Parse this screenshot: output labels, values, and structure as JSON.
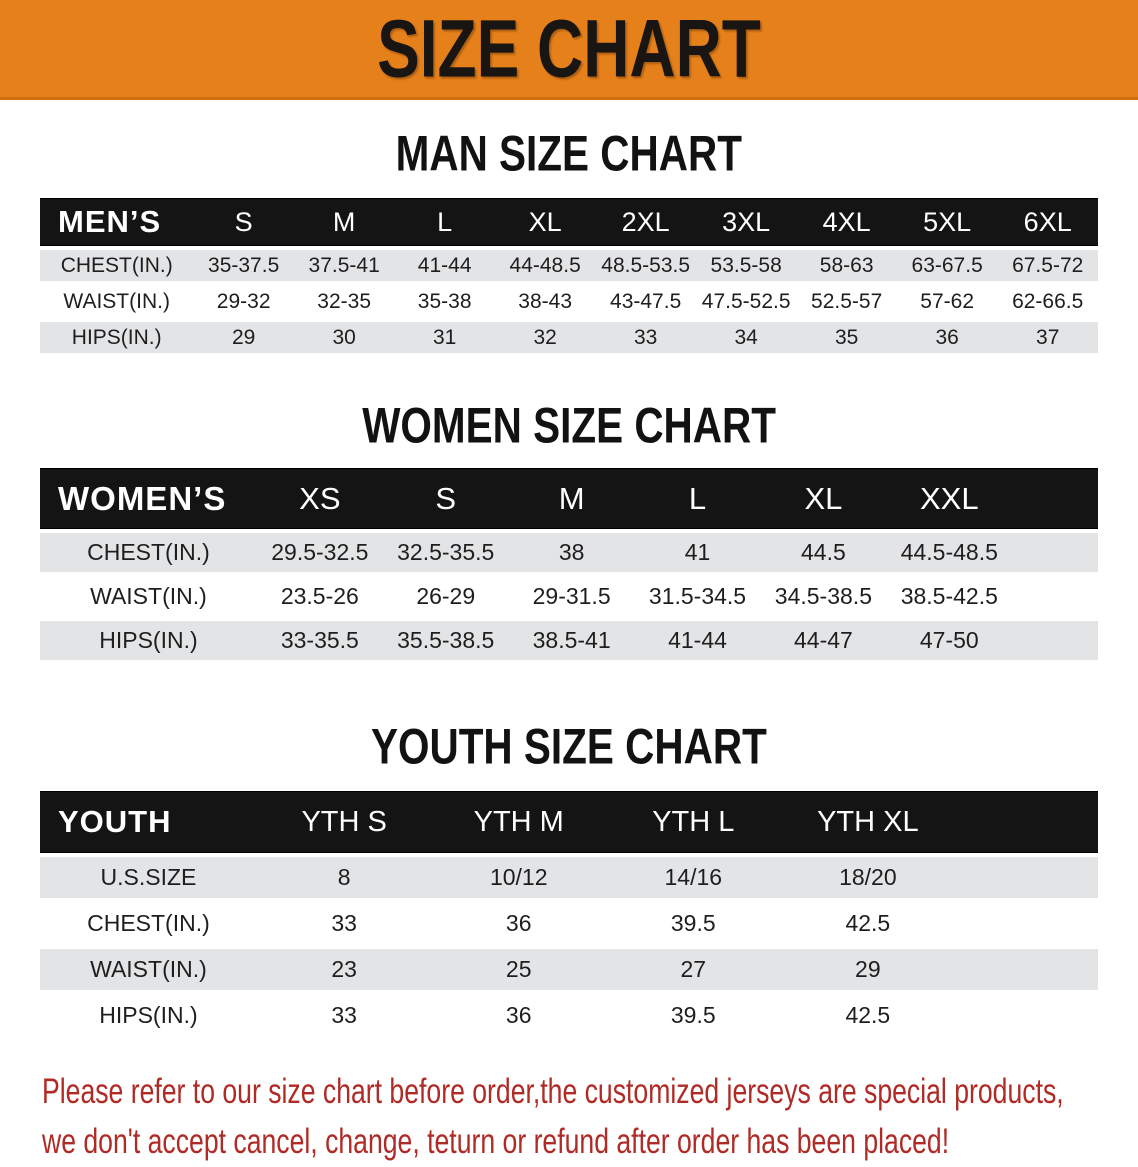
{
  "banner": {
    "title": "SIZE CHART"
  },
  "colors": {
    "banner_bg": "#E6801A",
    "header_bg": "#141414",
    "stripe": "#E3E4E6",
    "disclaimer_color": "#B02A26"
  },
  "sections": [
    {
      "heading": "MAN SIZE CHART",
      "table": {
        "header": [
          "MEN’S",
          "S",
          "M",
          "L",
          "XL",
          "2XL",
          "3XL",
          "4XL",
          "5XL",
          "6XL"
        ],
        "rows": [
          {
            "label": "CHEST(IN.)",
            "values": [
              "35-37.5",
              "37.5-41",
              "41-44",
              "44-48.5",
              "48.5-53.5",
              "53.5-58",
              "58-63",
              "63-67.5",
              "67.5-72"
            ]
          },
          {
            "label": "WAIST(IN.)",
            "values": [
              "29-32",
              "32-35",
              "35-38",
              "38-43",
              "43-47.5",
              "47.5-52.5",
              "52.5-57",
              "57-62",
              "62-66.5"
            ]
          },
          {
            "label": "HIPS(IN.)",
            "values": [
              "29",
              "30",
              "31",
              "32",
              "33",
              "34",
              "35",
              "36",
              "37"
            ]
          }
        ]
      }
    },
    {
      "heading": "WOMEN SIZE CHART",
      "table": {
        "header": [
          "WOMEN’S",
          "XS",
          "S",
          "M",
          "L",
          "XL",
          "XXL"
        ],
        "rows": [
          {
            "label": "CHEST(IN.)",
            "values": [
              "29.5-32.5",
              "32.5-35.5",
              "38",
              "41",
              "44.5",
              "44.5-48.5"
            ]
          },
          {
            "label": "WAIST(IN.)",
            "values": [
              "23.5-26",
              "26-29",
              "29-31.5",
              "31.5-34.5",
              "34.5-38.5",
              "38.5-42.5"
            ]
          },
          {
            "label": "HIPS(IN.)",
            "values": [
              "33-35.5",
              "35.5-38.5",
              "38.5-41",
              "41-44",
              "44-47",
              "47-50"
            ]
          }
        ]
      }
    },
    {
      "heading": "YOUTH SIZE CHART",
      "table": {
        "header": [
          "YOUTH",
          "YTH S",
          "YTH M",
          "YTH L",
          "YTH XL"
        ],
        "rows": [
          {
            "label": "U.S.SIZE",
            "values": [
              "8",
              "10/12",
              "14/16",
              "18/20"
            ]
          },
          {
            "label": "CHEST(IN.)",
            "values": [
              "33",
              "36",
              "39.5",
              "42.5"
            ]
          },
          {
            "label": "WAIST(IN.)",
            "values": [
              "23",
              "25",
              "27",
              "29"
            ]
          },
          {
            "label": "HIPS(IN.)",
            "values": [
              "33",
              "36",
              "39.5",
              "42.5"
            ]
          }
        ]
      }
    }
  ],
  "disclaimer": {
    "line1": "Please refer to our size chart before order,the customized jerseys are special products,",
    "line2": "we don't accept cancel, change, teturn or refund after order has been placed!"
  }
}
